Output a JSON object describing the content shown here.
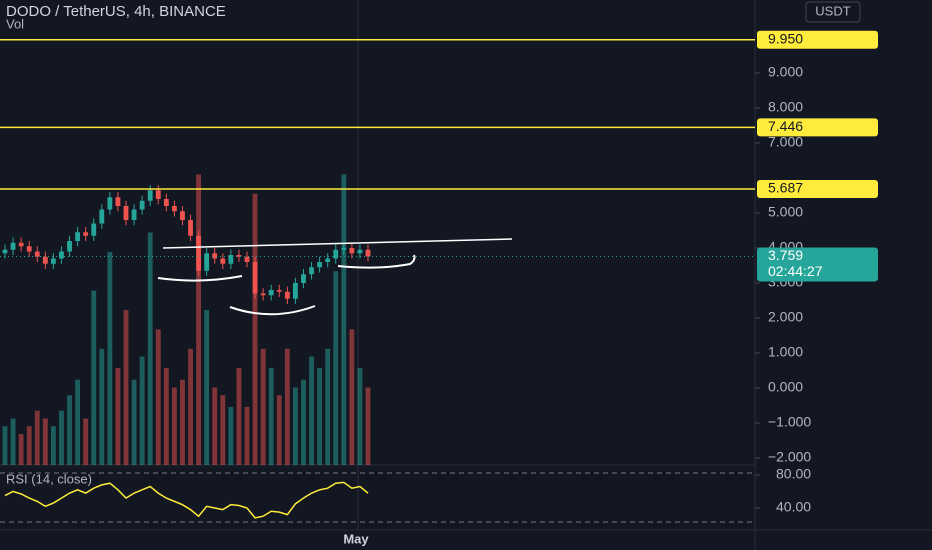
{
  "chart_data": {
    "type": "candlestick",
    "title": "DODO / TetherUS, 4h, BINANCE",
    "volume_label": "Vol",
    "currency": "USDT",
    "x_label": "May",
    "up_color": "#26a69a",
    "down_color": "#ef5350",
    "level_color": "#ffeb3b",
    "ylim": [
      -2.2,
      11.086
    ],
    "yticks": [
      {
        "value": -2,
        "label": "−2.000"
      },
      {
        "value": -1,
        "label": "−1.000"
      },
      {
        "value": 0,
        "label": "0.000"
      },
      {
        "value": 1,
        "label": "1.000"
      },
      {
        "value": 2,
        "label": "2.000"
      },
      {
        "value": 3,
        "label": "3.000"
      },
      {
        "value": 4,
        "label": "4.000"
      },
      {
        "value": 5,
        "label": "5.000"
      },
      {
        "value": 7,
        "label": "7.000"
      },
      {
        "value": 8,
        "label": "8.000"
      },
      {
        "value": 9,
        "label": "9.000"
      }
    ],
    "levels": [
      {
        "value": 9.95,
        "label": "9.950"
      },
      7.446,
      5.687
    ],
    "last_price": 3.759,
    "countdown": "02:44:27",
    "open": [
      3.85,
      3.95,
      4.15,
      4.05,
      3.9,
      3.75,
      3.55,
      3.7,
      3.9,
      4.2,
      4.45,
      4.35,
      4.7,
      5.1,
      5.45,
      5.2,
      4.8,
      5.1,
      5.35,
      5.65,
      5.4,
      5.2,
      5.05,
      4.8,
      4.35,
      3.35,
      3.85,
      3.7,
      3.55,
      3.8,
      3.75,
      3.6,
      2.7,
      2.65,
      2.8,
      2.75,
      2.55,
      3.0,
      3.25,
      3.45,
      3.6,
      3.7,
      3.95,
      4.0,
      3.85,
      3.95
    ],
    "high": [
      4.1,
      4.3,
      4.3,
      4.2,
      4.05,
      3.9,
      3.85,
      4.05,
      4.35,
      4.6,
      4.6,
      4.85,
      5.25,
      5.6,
      5.6,
      5.35,
      5.25,
      5.5,
      5.8,
      5.8,
      5.55,
      5.35,
      5.2,
      4.95,
      4.5,
      4.0,
      4.0,
      3.85,
      3.95,
      3.95,
      3.9,
      3.75,
      2.85,
      2.95,
      2.95,
      2.9,
      3.15,
      3.4,
      3.6,
      3.75,
      3.85,
      4.1,
      4.15,
      4.15,
      4.1,
      4.1
    ],
    "low": [
      3.7,
      3.8,
      3.9,
      3.75,
      3.6,
      3.4,
      3.4,
      3.55,
      3.75,
      4.05,
      4.2,
      4.2,
      4.55,
      4.95,
      5.05,
      4.65,
      4.65,
      4.95,
      5.2,
      5.25,
      5.05,
      4.9,
      4.65,
      4.2,
      3.2,
      3.2,
      3.55,
      3.4,
      3.4,
      3.6,
      3.45,
      2.55,
      2.5,
      2.5,
      2.6,
      2.4,
      2.4,
      2.85,
      3.1,
      3.3,
      3.45,
      3.55,
      3.8,
      3.7,
      3.7,
      3.61
    ],
    "close": [
      3.95,
      4.15,
      4.05,
      3.9,
      3.75,
      3.55,
      3.7,
      3.9,
      4.2,
      4.45,
      4.35,
      4.7,
      5.1,
      5.45,
      5.2,
      4.8,
      5.1,
      5.35,
      5.65,
      5.4,
      5.2,
      5.05,
      4.8,
      4.35,
      3.35,
      3.85,
      3.7,
      3.55,
      3.8,
      3.75,
      3.6,
      2.7,
      2.65,
      2.8,
      2.75,
      2.55,
      3.0,
      3.25,
      3.45,
      3.6,
      3.7,
      3.95,
      4.0,
      3.85,
      3.95,
      3.76
    ],
    "volume": [
      10,
      12,
      8,
      10,
      14,
      12,
      10,
      14,
      18,
      22,
      12,
      45,
      30,
      55,
      25,
      40,
      22,
      28,
      60,
      35,
      25,
      20,
      22,
      30,
      75,
      40,
      20,
      18,
      15,
      25,
      15,
      70,
      30,
      25,
      18,
      30,
      20,
      22,
      28,
      25,
      30,
      50,
      75,
      35,
      25,
      20
    ],
    "vlim": [
      0,
      120
    ],
    "rsi_label": "RSI (14, close)",
    "rsi_color": "#ffeb3b",
    "rsi": [
      55,
      60,
      57,
      52,
      48,
      42,
      46,
      52,
      58,
      62,
      58,
      64,
      68,
      70,
      62,
      52,
      58,
      62,
      66,
      58,
      52,
      48,
      44,
      38,
      30,
      42,
      40,
      38,
      44,
      43,
      40,
      28,
      30,
      36,
      35,
      32,
      45,
      52,
      58,
      62,
      64,
      70,
      71,
      64,
      66,
      58
    ],
    "rsi_lim": [
      13.3,
      92.1
    ],
    "rsi_ticks": [
      {
        "value": 80,
        "label": "80.00"
      },
      {
        "value": 40,
        "label": "40.00"
      }
    ]
  }
}
